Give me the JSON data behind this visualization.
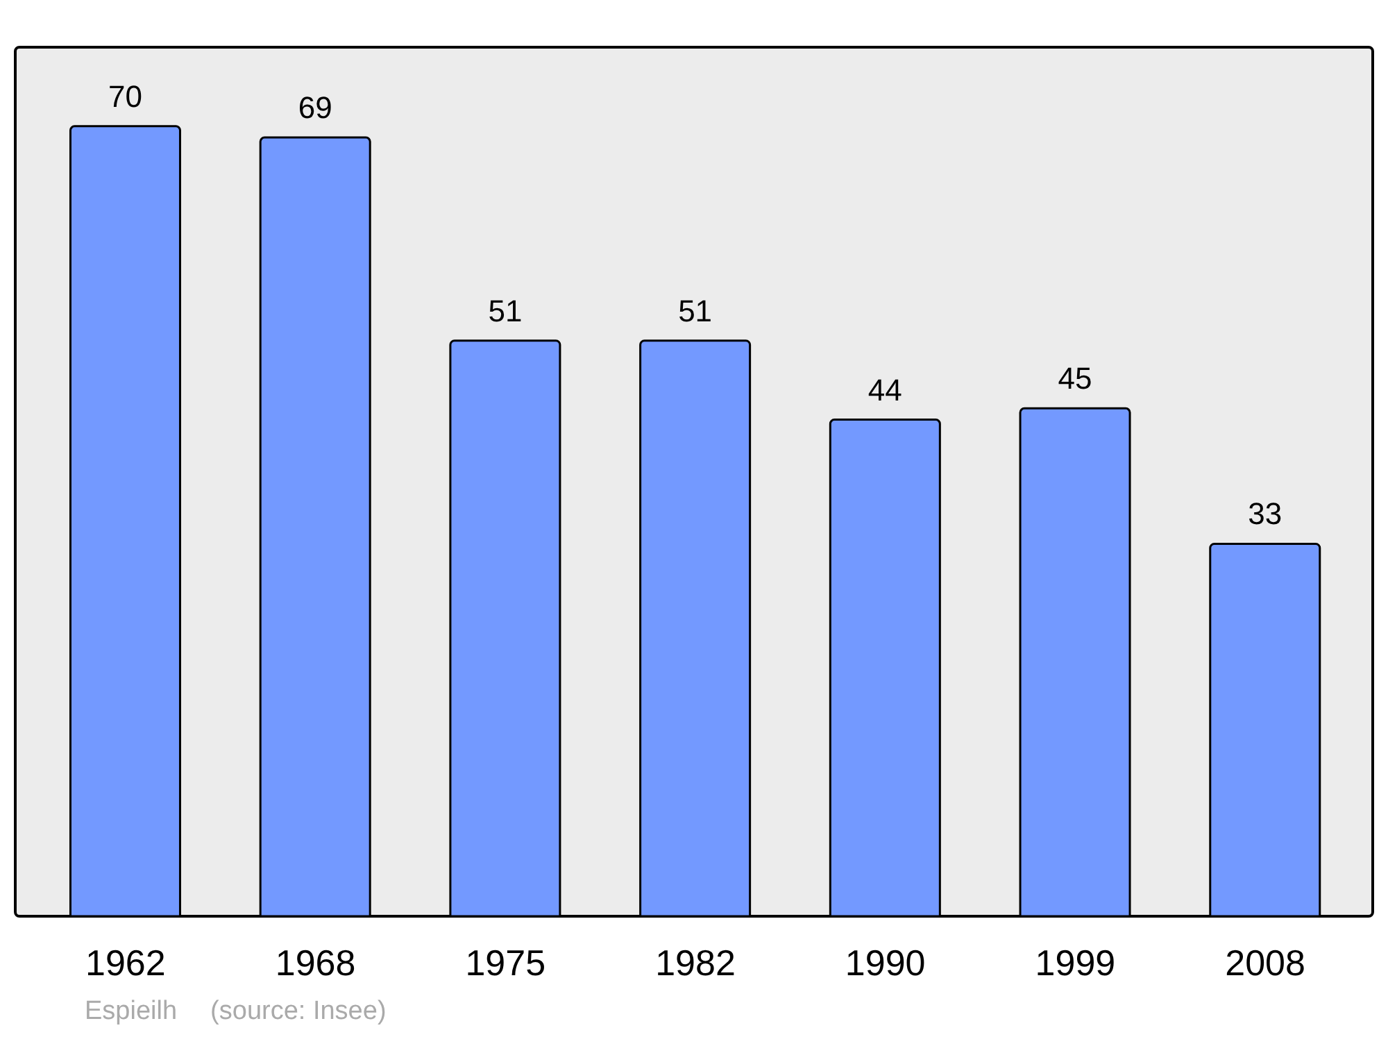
{
  "chart_data": {
    "type": "bar",
    "categories": [
      "1962",
      "1968",
      "1975",
      "1982",
      "1990",
      "1999",
      "2008"
    ],
    "values": [
      70,
      69,
      51,
      51,
      44,
      45,
      33
    ],
    "color": "#7399ff",
    "data_labels": true,
    "annotations": [
      "Espieilh",
      "(source: Insee)"
    ]
  }
}
